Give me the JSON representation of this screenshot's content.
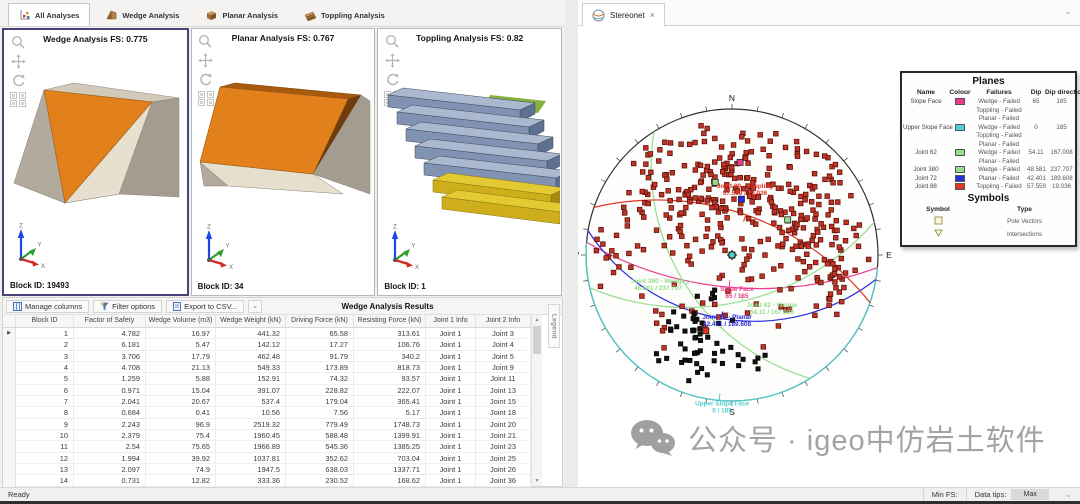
{
  "analysis_tabs": [
    {
      "label": "All Analyses",
      "active": true
    },
    {
      "label": "Wedge Analysis",
      "active": false
    },
    {
      "label": "Planar Analysis",
      "active": false
    },
    {
      "label": "Toppling Analysis",
      "active": false
    }
  ],
  "viewports": [
    {
      "title": "Wedge Analysis FS: 0.775",
      "block_id": "Block ID: 19493",
      "selected": true
    },
    {
      "title": "Planar Analysis FS: 0.767",
      "block_id": "Block ID: 34",
      "selected": false
    },
    {
      "title": "Toppling Analysis FS: 0.82",
      "block_id": "Block ID: 1",
      "selected": false
    }
  ],
  "axis_labels": {
    "x": "X",
    "y": "Y",
    "z": "Z"
  },
  "results_panel": {
    "toolbar": {
      "manage_columns": "Manage columns",
      "filter_options": "Filter options",
      "export_csv": "Export to CSV...",
      "dropdown_glyph": "⌄",
      "title": "Wedge Analysis Results"
    },
    "legend_side_tab": "Legend",
    "table": {
      "columns": [
        "Block ID",
        "Factor of Safety",
        "Wedge Volume (m3)",
        "Wedge Weight (kN)",
        "Driving Force (kN)",
        "Resisting Force (kN)",
        "Joint 1 Info",
        "Joint 2 Info"
      ],
      "rows": [
        [
          "1",
          "4.782",
          "16.97",
          "441.32",
          "65.58",
          "313.61",
          "Joint 1",
          "Joint 3"
        ],
        [
          "2",
          "6.181",
          "5.47",
          "142.12",
          "17.27",
          "106.76",
          "Joint 1",
          "Joint 4"
        ],
        [
          "3",
          "3.706",
          "17.79",
          "462.48",
          "91.79",
          "340.2",
          "Joint 1",
          "Joint 5"
        ],
        [
          "4",
          "4.708",
          "21.13",
          "549.33",
          "173.89",
          "818.73",
          "Joint 1",
          "Joint 9"
        ],
        [
          "5",
          "1.259",
          "5.88",
          "152.91",
          "74.32",
          "93.57",
          "Joint 1",
          "Joint 11"
        ],
        [
          "6",
          "0.971",
          "15.04",
          "391.07",
          "228.82",
          "222.07",
          "Joint 1",
          "Joint 13"
        ],
        [
          "7",
          "2.041",
          "20.67",
          "537.4",
          "179.04",
          "365.41",
          "Joint 1",
          "Joint 15"
        ],
        [
          "8",
          "0.684",
          "0.41",
          "10.56",
          "7.56",
          "5.17",
          "Joint 1",
          "Joint 18"
        ],
        [
          "9",
          "2.243",
          "96.9",
          "2519.32",
          "779.49",
          "1748.73",
          "Joint 1",
          "Joint 20"
        ],
        [
          "10",
          "2.379",
          "75.4",
          "1960.45",
          "588.48",
          "1399.91",
          "Joint 1",
          "Joint 21"
        ],
        [
          "11",
          "2.54",
          "75.65",
          "1966.89",
          "545.36",
          "1385.25",
          "Joint 1",
          "Joint 23"
        ],
        [
          "12",
          "1.994",
          "39.92",
          "1037.81",
          "352.62",
          "703.04",
          "Joint 1",
          "Joint 25"
        ],
        [
          "13",
          "2.097",
          "74.9",
          "1947.5",
          "638.03",
          "1337.71",
          "Joint 1",
          "Joint 26"
        ],
        [
          "14",
          "0.731",
          "12.82",
          "333.36",
          "230.52",
          "168.62",
          "Joint 1",
          "Joint 36"
        ]
      ]
    }
  },
  "statusbar": {
    "ready": "Ready",
    "min_fs_label": "Min FS:",
    "data_tips_label": "Data tips:",
    "data_tips_value": "Max",
    "chevron_glyph": "⌄"
  },
  "stereonet_view": {
    "tab_label": "Stereonet",
    "close_glyph": "×",
    "chevron_glyph": "⌄"
  },
  "watermark": {
    "text": "公众号 · igeo中仿岩土软件"
  },
  "chart_data": {
    "type": "scatter",
    "subtype": "equal-angle-stereonet",
    "cardinal_labels": [
      "N",
      "E",
      "S",
      "W"
    ],
    "planes": [
      {
        "name": "Slope Face",
        "color": "#ee3a8c",
        "dip": 65,
        "dip_direction": 185,
        "dip_label": "65",
        "dip_dir_label": "185",
        "failures": [
          "Wedge - Failed",
          "Toppling - Failed",
          "Planar - Failed"
        ],
        "annotation": {
          "line1": "Slope Face",
          "line2": "65 / 185",
          "x": 0.034,
          "y": 0.247
        }
      },
      {
        "name": "Upper Slope Face",
        "color": "#4fcfcf",
        "dip": 0,
        "dip_direction": 185,
        "dip_label": "0",
        "dip_dir_label": "185",
        "failures": [
          "Wedge - Failed",
          "Toppling - Failed",
          "Planar - Failed"
        ],
        "annotation": {
          "line1": "Upper Slope Face",
          "line2": "0 / 185",
          "x": -0.068,
          "y": 1.03
        }
      },
      {
        "name": "Joint 62",
        "color": "#94dd8c",
        "dip": 54.11,
        "dip_direction": 167.008,
        "dip_label": "54.11",
        "dip_dir_label": "167.008",
        "failures": [
          "Wedge - Failed",
          "Planar - Failed"
        ],
        "annotation": {
          "line1": "Joint 62 - Wedge",
          "line2": "54.11 / 167.008",
          "x": 0.274,
          "y": 0.356
        }
      },
      {
        "name": "Joint 380",
        "color": "#94dd8c",
        "dip": 48.581,
        "dip_direction": 237.707,
        "dip_label": "48.581",
        "dip_dir_label": "237.707",
        "failures": [
          "Wedge - Failed"
        ],
        "annotation": {
          "line1": "Joint 380 - Wedge",
          "line2": "48.581 / 237.707",
          "x": -0.507,
          "y": 0.192
        }
      },
      {
        "name": "Joint 72",
        "color": "#2b2bdd",
        "dip": 42.401,
        "dip_direction": 189.608,
        "dip_label": "42.401",
        "dip_dir_label": "189.608",
        "failures": [
          "Planar - Failed"
        ],
        "annotation": {
          "line1": "Joint 72 - Planar",
          "line2": "42.401 / 189.608",
          "x": -0.034,
          "y": 0.438
        }
      },
      {
        "name": "Joint 88",
        "color": "#e23222",
        "dip": 57.559,
        "dip_direction": 19.036,
        "dip_label": "57.559",
        "dip_dir_label": "19.036",
        "failures": [
          "Toppling - Failed"
        ],
        "annotation": {
          "line1": "Joint 88 - Toppling",
          "line2": "57.559 / 19.036",
          "x": 0.089,
          "y": -0.459
        }
      }
    ],
    "legend": {
      "title": "Planes",
      "headers": [
        "Name",
        "Colour",
        "Failures",
        "Dip",
        "Dip direction"
      ],
      "symbols_title": "Symbols",
      "symbols_headers": [
        "Symbol",
        "Type"
      ],
      "symbols": [
        {
          "glyph": "square",
          "type": "Pole Vectors"
        },
        {
          "glyph": "triangle-down",
          "type": "Intersections"
        }
      ]
    },
    "pole_clusters": [
      {
        "name": "failed-poles",
        "color": "#c13527",
        "stroke": "#5f120a",
        "size": 4.6,
        "groups": [
          [
            0.05,
            -0.52,
            0.38,
            0.22,
            150
          ],
          [
            0.55,
            -0.15,
            0.22,
            0.28,
            110
          ],
          [
            -0.35,
            -0.35,
            0.25,
            0.2,
            55
          ],
          [
            -0.15,
            0.05,
            0.3,
            0.18,
            30
          ],
          [
            -0.85,
            0.0,
            0.08,
            0.18,
            12
          ],
          [
            -0.55,
            0.45,
            0.12,
            0.1,
            6
          ],
          [
            0.3,
            0.38,
            0.25,
            0.12,
            12
          ],
          [
            0.78,
            0.18,
            0.1,
            0.14,
            14
          ]
        ]
      },
      {
        "name": "stable-poles",
        "color": "#141414",
        "stroke": "#000000",
        "size": 4.2,
        "groups": [
          [
            -0.28,
            0.6,
            0.14,
            0.12,
            46
          ],
          [
            0.05,
            0.72,
            0.12,
            0.05,
            8
          ],
          [
            -0.18,
            0.28,
            0.05,
            0.05,
            4
          ]
        ]
      }
    ]
  }
}
